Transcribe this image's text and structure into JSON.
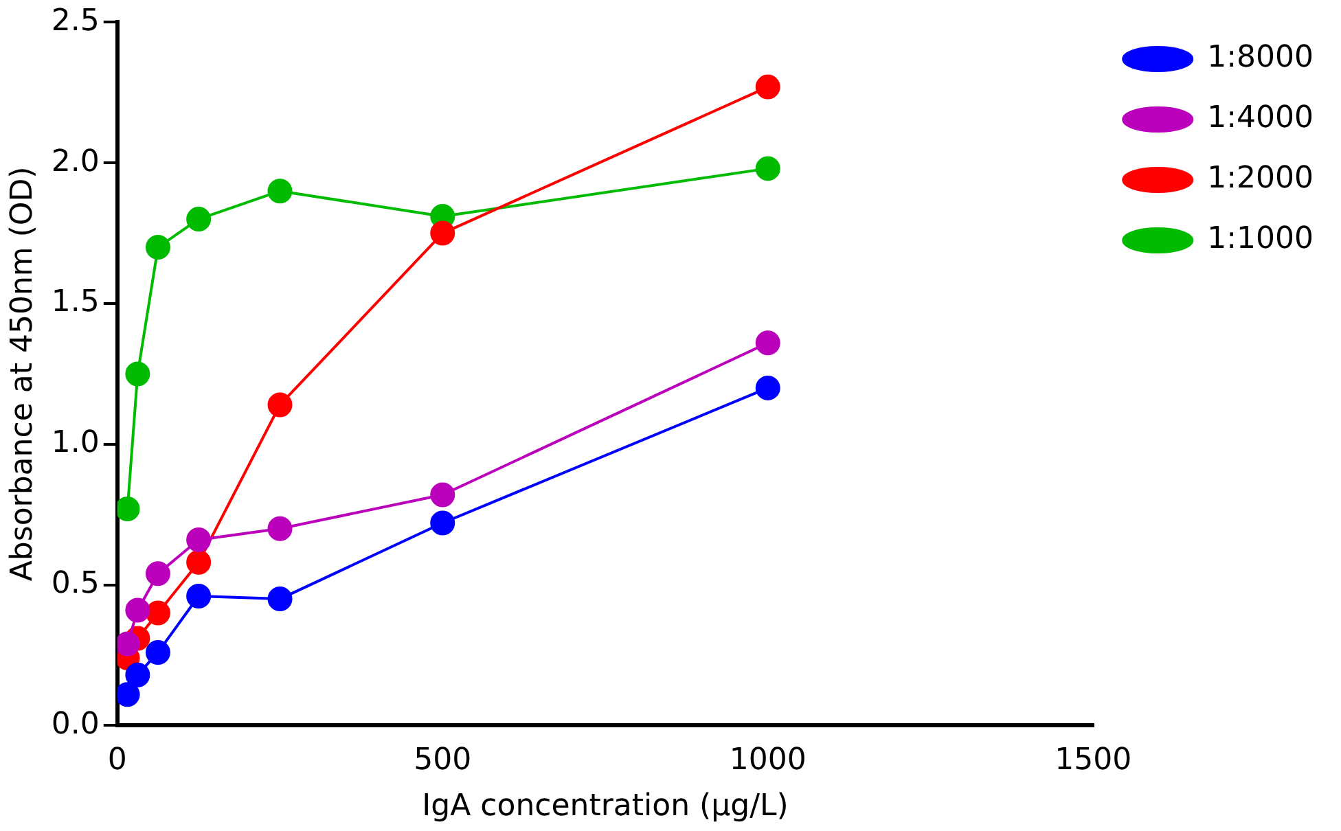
{
  "chart_data": {
    "type": "line",
    "xlabel": "IgA concentration (μg/L)",
    "ylabel": "Absorbance at 450nm (OD)",
    "x": [
      15.625,
      31.25,
      62.5,
      125,
      250,
      500,
      1000
    ],
    "series": [
      {
        "name": "1:8000",
        "color": "#0000ff",
        "values": [
          0.11,
          0.18,
          0.26,
          0.46,
          0.45,
          0.72,
          1.2
        ]
      },
      {
        "name": "1:4000",
        "color": "#bb00bb",
        "values": [
          0.29,
          0.41,
          0.54,
          0.66,
          0.7,
          0.82,
          1.36
        ]
      },
      {
        "name": "1:2000",
        "color": "#ff0000",
        "values": [
          0.24,
          0.31,
          0.4,
          0.58,
          1.14,
          1.75,
          2.27
        ]
      },
      {
        "name": "1:1000",
        "color": "#00bb00",
        "values": [
          0.77,
          1.25,
          1.7,
          1.8,
          1.9,
          1.81,
          1.98
        ]
      }
    ],
    "xlim": [
      0,
      1500
    ],
    "xticks": [
      0,
      500,
      1000,
      1500
    ],
    "ylim": [
      0,
      2.5
    ],
    "yticks": [
      {
        "value": 0,
        "label": "0.0"
      },
      {
        "value": 0.5,
        "label": "0.5"
      },
      {
        "value": 1,
        "label": "1.0"
      },
      {
        "value": 1.5,
        "label": "1.5"
      },
      {
        "value": 2,
        "label": "2.0"
      },
      {
        "value": 2.5,
        "label": "2.5"
      }
    ],
    "grid": false,
    "legend": "right",
    "marker": "circle",
    "line_style": "solid"
  }
}
